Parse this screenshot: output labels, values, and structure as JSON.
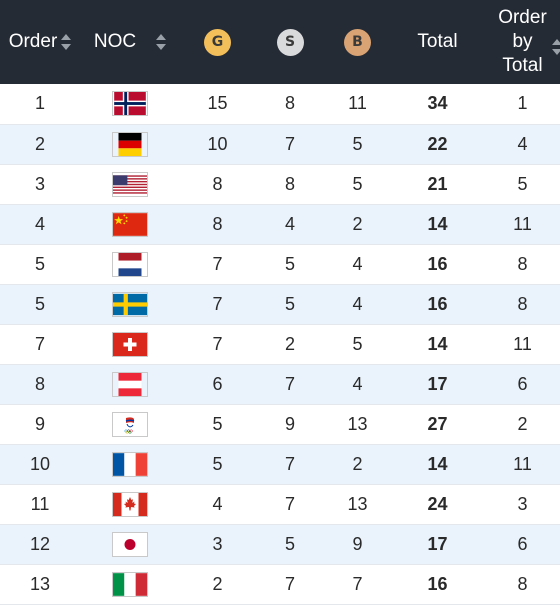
{
  "header": {
    "order": "Order",
    "noc": "NOC",
    "gold": "G",
    "silver": "S",
    "bronze": "B",
    "total": "Total",
    "order_by_total_1": "Order",
    "order_by_total_2": "by",
    "order_by_total_3": "Total"
  },
  "rows": [
    {
      "order": "1",
      "flag": "norway-flag-icon",
      "g": "15",
      "s": "8",
      "b": "11",
      "total": "34",
      "obt": "1"
    },
    {
      "order": "2",
      "flag": "germany-flag-icon",
      "g": "10",
      "s": "7",
      "b": "5",
      "total": "22",
      "obt": "4"
    },
    {
      "order": "3",
      "flag": "usa-flag-icon",
      "g": "8",
      "s": "8",
      "b": "5",
      "total": "21",
      "obt": "5"
    },
    {
      "order": "4",
      "flag": "china-flag-icon",
      "g": "8",
      "s": "4",
      "b": "2",
      "total": "14",
      "obt": "11"
    },
    {
      "order": "5",
      "flag": "netherlands-flag-icon",
      "g": "7",
      "s": "5",
      "b": "4",
      "total": "16",
      "obt": "8"
    },
    {
      "order": "5",
      "flag": "sweden-flag-icon",
      "g": "7",
      "s": "5",
      "b": "4",
      "total": "16",
      "obt": "8"
    },
    {
      "order": "7",
      "flag": "switzerland-flag-icon",
      "g": "7",
      "s": "2",
      "b": "5",
      "total": "14",
      "obt": "11"
    },
    {
      "order": "8",
      "flag": "austria-flag-icon",
      "g": "6",
      "s": "7",
      "b": "4",
      "total": "17",
      "obt": "6"
    },
    {
      "order": "9",
      "flag": "roc-emblem-icon",
      "g": "5",
      "s": "9",
      "b": "13",
      "total": "27",
      "obt": "2"
    },
    {
      "order": "10",
      "flag": "france-flag-icon",
      "g": "5",
      "s": "7",
      "b": "2",
      "total": "14",
      "obt": "11"
    },
    {
      "order": "11",
      "flag": "canada-flag-icon",
      "g": "4",
      "s": "7",
      "b": "13",
      "total": "24",
      "obt": "3"
    },
    {
      "order": "12",
      "flag": "japan-flag-icon",
      "g": "3",
      "s": "5",
      "b": "9",
      "total": "17",
      "obt": "6"
    },
    {
      "order": "13",
      "flag": "italy-flag-icon",
      "g": "2",
      "s": "7",
      "b": "7",
      "total": "16",
      "obt": "8"
    }
  ]
}
